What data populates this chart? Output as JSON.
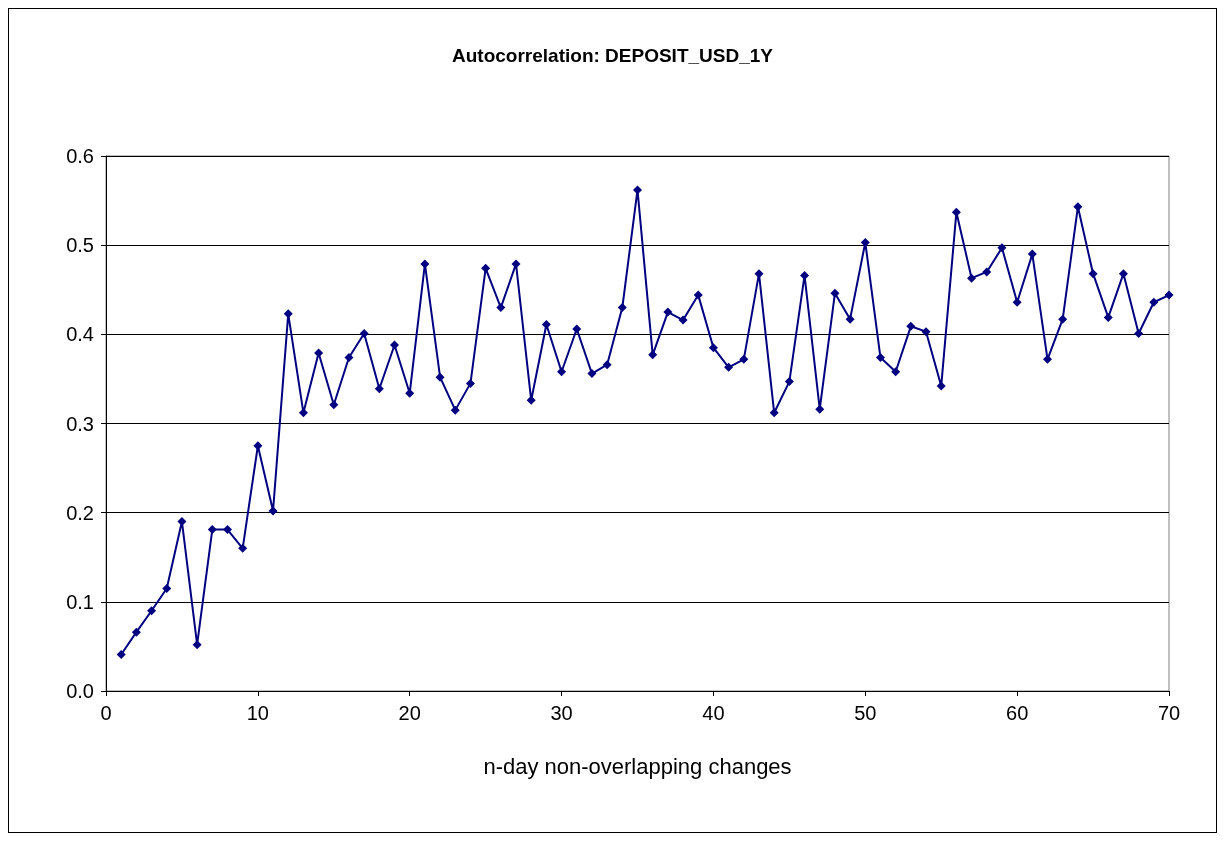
{
  "chart_data": {
    "type": "line",
    "title": "Autocorrelation: DEPOSIT_USD_1Y",
    "xlabel": "n-day non-overlapping changes",
    "x": [
      1,
      2,
      3,
      4,
      5,
      6,
      7,
      8,
      9,
      10,
      11,
      12,
      13,
      14,
      15,
      16,
      17,
      18,
      19,
      20,
      21,
      22,
      23,
      24,
      25,
      26,
      27,
      28,
      29,
      30,
      31,
      32,
      33,
      34,
      35,
      36,
      37,
      38,
      39,
      40,
      41,
      42,
      43,
      44,
      45,
      46,
      47,
      48,
      49,
      50,
      51,
      52,
      53,
      54,
      55,
      56,
      57,
      58,
      59,
      60,
      61,
      62,
      63,
      64,
      65,
      66,
      67,
      68,
      69,
      70
    ],
    "series": [
      {
        "color": "#000080",
        "values": [
          0.041,
          0.066,
          0.09,
          0.115,
          0.19,
          0.052,
          0.181,
          0.181,
          0.16,
          0.275,
          0.202,
          0.423,
          0.312,
          0.379,
          0.321,
          0.374,
          0.401,
          0.339,
          0.388,
          0.334,
          0.479,
          0.352,
          0.315,
          0.345,
          0.474,
          0.43,
          0.479,
          0.326,
          0.411,
          0.358,
          0.406,
          0.356,
          0.366,
          0.43,
          0.562,
          0.377,
          0.425,
          0.416,
          0.444,
          0.385,
          0.363,
          0.372,
          0.468,
          0.312,
          0.347,
          0.466,
          0.316,
          0.446,
          0.417,
          0.503,
          0.374,
          0.358,
          0.409,
          0.403,
          0.342,
          0.537,
          0.463,
          0.47,
          0.497,
          0.436,
          0.49,
          0.372,
          0.417,
          0.543,
          0.468,
          0.419,
          0.468,
          0.401,
          0.436,
          0.444
        ]
      }
    ],
    "xlim": [
      0,
      70
    ],
    "xticks": [
      0,
      10,
      20,
      30,
      40,
      50,
      60,
      70
    ],
    "ylim": [
      0,
      0.6
    ],
    "yticks": [
      {
        "value": 0,
        "label": "0.0"
      },
      0.1,
      0.2,
      0.3,
      0.4,
      0.5,
      0.6
    ],
    "grid": "y",
    "marker": "diamond",
    "line_style": "solid"
  }
}
